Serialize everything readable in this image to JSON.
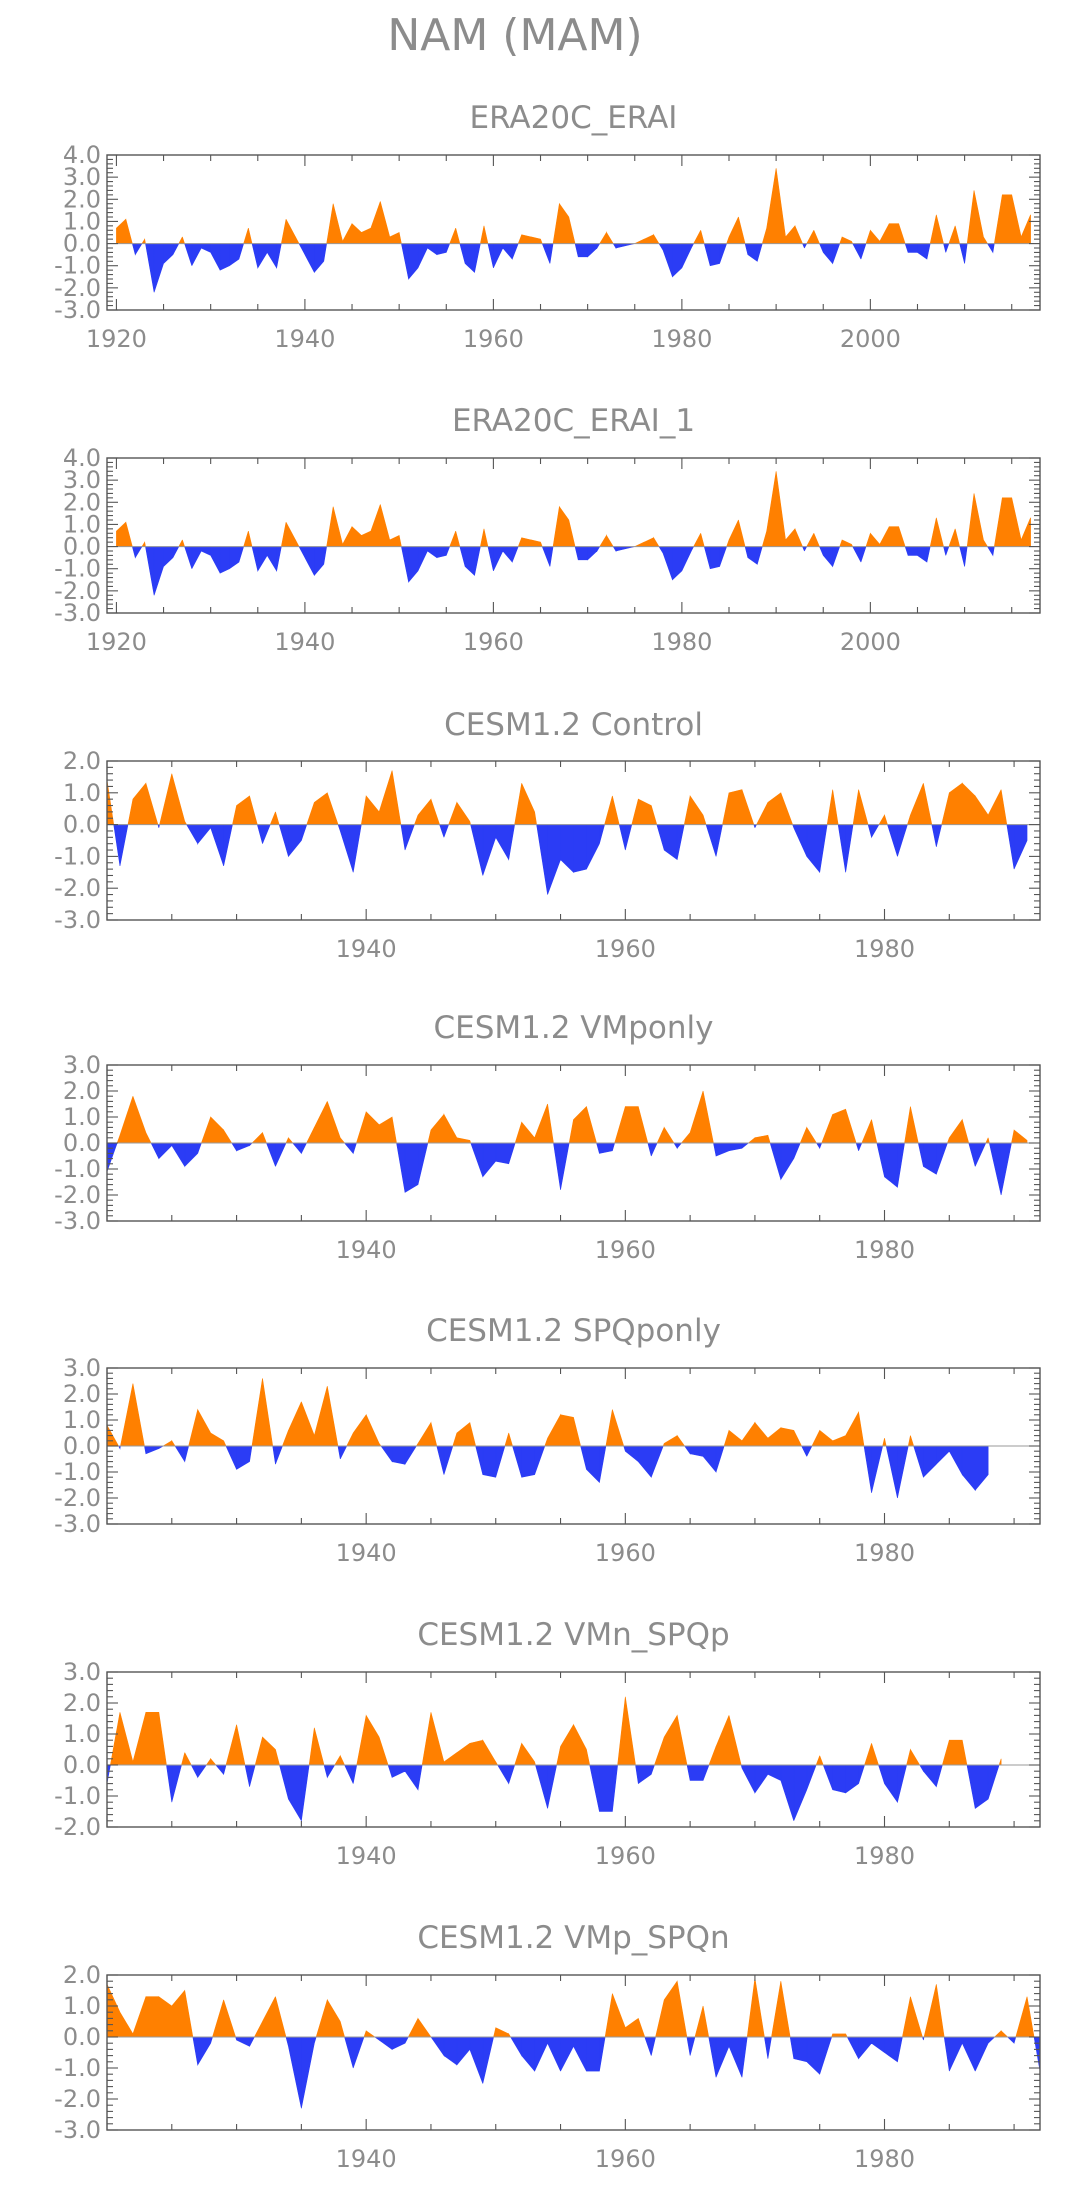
{
  "figure": {
    "title": "NAM (MAM)",
    "colors": {
      "positive": "#ff8000",
      "negative": "#2b3cf5",
      "text": "#8c8c8c",
      "axis": "#555555"
    }
  },
  "chart_data": [
    {
      "type": "area",
      "title": "ERA20C_ERAI",
      "xlim": [
        1919,
        2018
      ],
      "ylim": [
        -3.0,
        4.0
      ],
      "yticks": [
        "4.0",
        "3.0",
        "2.0",
        "1.0",
        "0.0",
        "-1.0",
        "-2.0",
        "-3.0"
      ],
      "xticks": [
        "1920",
        "1940",
        "1960",
        "1980",
        "2000"
      ],
      "x_start": 1920,
      "values": [
        0.7,
        1.1,
        -0.5,
        0.2,
        -2.2,
        -0.9,
        -0.5,
        0.3,
        -1.0,
        -0.2,
        -0.4,
        -1.2,
        -1.0,
        -0.7,
        0.7,
        -1.1,
        -0.4,
        -1.1,
        1.1,
        0.3,
        -0.5,
        -1.3,
        -0.8,
        1.8,
        0.1,
        0.9,
        0.5,
        0.7,
        1.9,
        0.3,
        0.5,
        -1.6,
        -1.1,
        -0.2,
        -0.5,
        -0.4,
        0.7,
        -0.9,
        -1.3,
        0.8,
        -1.1,
        -0.2,
        -0.7,
        0.4,
        0.3,
        0.2,
        -0.9,
        1.8,
        1.2,
        -0.6,
        -0.6,
        -0.2,
        0.5,
        -0.2,
        -0.1,
        0.0,
        0.2,
        0.4,
        -0.3,
        -1.5,
        -1.1,
        -0.2,
        0.6,
        -1.0,
        -0.9,
        0.3,
        1.2,
        -0.5,
        -0.8,
        0.7,
        3.4,
        0.3,
        0.8,
        -0.2,
        0.6,
        -0.4,
        -0.9,
        0.3,
        0.1,
        -0.7,
        0.6,
        0.1,
        0.9,
        0.9,
        -0.4,
        -0.4,
        -0.7,
        1.3,
        -0.4,
        0.8,
        -0.9,
        2.4,
        0.3,
        -0.4,
        2.2,
        2.2,
        0.3,
        1.3
      ]
    },
    {
      "type": "area",
      "title": "ERA20C_ERAI_1",
      "xlim": [
        1919,
        2018
      ],
      "ylim": [
        -3.0,
        4.0
      ],
      "yticks": [
        "4.0",
        "3.0",
        "2.0",
        "1.0",
        "0.0",
        "-1.0",
        "-2.0",
        "-3.0"
      ],
      "xticks": [
        "1920",
        "1940",
        "1960",
        "1980",
        "2000"
      ],
      "x_start": 1920,
      "values": [
        0.7,
        1.1,
        -0.5,
        0.2,
        -2.2,
        -0.9,
        -0.5,
        0.3,
        -1.0,
        -0.2,
        -0.4,
        -1.2,
        -1.0,
        -0.7,
        0.7,
        -1.1,
        -0.4,
        -1.1,
        1.1,
        0.3,
        -0.5,
        -1.3,
        -0.8,
        1.8,
        0.1,
        0.9,
        0.5,
        0.7,
        1.9,
        0.3,
        0.5,
        -1.6,
        -1.1,
        -0.2,
        -0.5,
        -0.4,
        0.7,
        -0.9,
        -1.3,
        0.8,
        -1.1,
        -0.2,
        -0.7,
        0.4,
        0.3,
        0.2,
        -0.9,
        1.8,
        1.2,
        -0.6,
        -0.6,
        -0.2,
        0.5,
        -0.2,
        -0.1,
        0.0,
        0.2,
        0.4,
        -0.3,
        -1.5,
        -1.1,
        -0.2,
        0.6,
        -1.0,
        -0.9,
        0.3,
        1.2,
        -0.5,
        -0.8,
        0.7,
        3.4,
        0.3,
        0.8,
        -0.2,
        0.6,
        -0.4,
        -0.9,
        0.3,
        0.1,
        -0.7,
        0.6,
        0.1,
        0.9,
        0.9,
        -0.4,
        -0.4,
        -0.7,
        1.3,
        -0.4,
        0.8,
        -0.9,
        2.4,
        0.3,
        -0.4,
        2.2,
        2.2,
        0.3,
        1.3
      ]
    },
    {
      "type": "area",
      "title": "CESM1.2 Control",
      "xlim": [
        1920,
        1992
      ],
      "ylim": [
        -3.0,
        2.0
      ],
      "yticks": [
        "2.0",
        "1.0",
        "0.0",
        "-1.0",
        "-2.0",
        "-3.0"
      ],
      "xticks": [
        "1940",
        "1960",
        "1980"
      ],
      "x_start": 1920,
      "values": [
        1.4,
        -1.3,
        0.8,
        1.3,
        -0.1,
        1.6,
        0.1,
        -0.6,
        -0.1,
        -1.3,
        0.6,
        0.9,
        -0.6,
        0.4,
        -1.0,
        -0.5,
        0.7,
        1.0,
        -0.2,
        -1.5,
        0.9,
        0.4,
        1.7,
        -0.8,
        0.3,
        0.8,
        -0.4,
        0.7,
        0.1,
        -1.6,
        -0.4,
        -1.1,
        1.3,
        0.4,
        -2.2,
        -1.1,
        -1.5,
        -1.4,
        -0.6,
        0.9,
        -0.8,
        0.8,
        0.6,
        -0.8,
        -1.1,
        0.9,
        0.3,
        -1.0,
        1.0,
        1.1,
        -0.1,
        0.7,
        1.0,
        -0.1,
        -1.0,
        -1.5,
        1.1,
        -1.5,
        1.1,
        -0.4,
        0.3,
        -1.0,
        0.3,
        1.3,
        -0.7,
        1.0,
        1.3,
        0.9,
        0.3,
        1.1,
        -1.4,
        -0.5
      ]
    },
    {
      "type": "area",
      "title": "CESM1.2 VMponly",
      "xlim": [
        1920,
        1992
      ],
      "ylim": [
        -3.0,
        3.0
      ],
      "yticks": [
        "3.0",
        "2.0",
        "1.0",
        "0.0",
        "-1.0",
        "-2.0",
        "-3.0"
      ],
      "xticks": [
        "1940",
        "1960",
        "1980"
      ],
      "x_start": 1920,
      "values": [
        -1.1,
        0.3,
        1.8,
        0.4,
        -0.6,
        -0.1,
        -0.9,
        -0.4,
        1.0,
        0.5,
        -0.3,
        -0.1,
        0.4,
        -0.9,
        0.2,
        -0.4,
        0.6,
        1.6,
        0.2,
        -0.4,
        1.2,
        0.7,
        1.0,
        -1.9,
        -1.6,
        0.5,
        1.1,
        0.2,
        0.1,
        -1.3,
        -0.7,
        -0.8,
        0.8,
        0.2,
        1.5,
        -1.8,
        0.9,
        1.4,
        -0.4,
        -0.3,
        1.4,
        1.4,
        -0.5,
        0.6,
        -0.2,
        0.4,
        2.0,
        -0.5,
        -0.3,
        -0.2,
        0.2,
        0.3,
        -1.4,
        -0.6,
        0.6,
        -0.2,
        1.1,
        1.3,
        -0.3,
        0.9,
        -1.3,
        -1.7,
        1.4,
        -0.9,
        -1.2,
        0.2,
        0.9,
        -0.9,
        0.2,
        -2.0,
        0.5,
        0.1
      ]
    },
    {
      "type": "area",
      "title": "CESM1.2 SPQponly",
      "xlim": [
        1920,
        1992
      ],
      "ylim": [
        -3.0,
        3.0
      ],
      "yticks": [
        "3.0",
        "2.0",
        "1.0",
        "0.0",
        "-1.0",
        "-2.0",
        "-3.0"
      ],
      "xticks": [
        "1940",
        "1960",
        "1980"
      ],
      "x_start": 1920,
      "values": [
        0.8,
        -0.1,
        2.4,
        -0.3,
        -0.1,
        0.2,
        -0.6,
        1.4,
        0.5,
        0.2,
        -0.9,
        -0.6,
        2.6,
        -0.7,
        0.6,
        1.7,
        0.4,
        2.3,
        -0.5,
        0.5,
        1.2,
        0.1,
        -0.6,
        -0.7,
        0.1,
        0.9,
        -1.1,
        0.5,
        0.9,
        -1.1,
        -1.2,
        0.5,
        -1.2,
        -1.1,
        0.3,
        1.2,
        1.1,
        -0.9,
        -1.4,
        1.4,
        -0.2,
        -0.6,
        -1.2,
        0.1,
        0.4,
        -0.3,
        -0.4,
        -1.0,
        0.6,
        0.2,
        0.9,
        0.3,
        0.7,
        0.6,
        -0.4,
        0.6,
        0.2,
        0.4,
        1.3,
        -1.8,
        0.3,
        -2.0,
        0.4,
        -1.2,
        -0.7,
        -0.2,
        -1.1,
        -1.7,
        -1.1
      ]
    },
    {
      "type": "area",
      "title": "CESM1.2 VMn_SPQp",
      "xlim": [
        1920,
        1992
      ],
      "ylim": [
        -2.0,
        3.0
      ],
      "yticks": [
        "3.0",
        "2.0",
        "1.0",
        "0.0",
        "-1.0",
        "-2.0"
      ],
      "xticks": [
        "1940",
        "1960",
        "1980"
      ],
      "x_start": 1920,
      "values": [
        -0.6,
        1.7,
        0.1,
        1.7,
        1.7,
        -1.2,
        0.4,
        -0.4,
        0.2,
        -0.3,
        1.3,
        -0.7,
        0.9,
        0.5,
        -1.1,
        -1.8,
        1.2,
        -0.4,
        0.3,
        -0.6,
        1.6,
        0.9,
        -0.4,
        -0.2,
        -0.8,
        1.7,
        0.1,
        0.4,
        0.7,
        0.8,
        0.1,
        -0.6,
        0.7,
        0.1,
        -1.4,
        0.6,
        1.3,
        0.5,
        -1.5,
        -1.5,
        2.2,
        -0.6,
        -0.3,
        0.9,
        1.6,
        -0.5,
        -0.5,
        0.6,
        1.6,
        -0.1,
        -0.9,
        -0.3,
        -0.5,
        -1.8,
        -0.8,
        0.3,
        -0.8,
        -0.9,
        -0.6,
        0.7,
        -0.6,
        -1.2,
        0.5,
        -0.2,
        -0.7,
        0.8,
        0.8,
        -1.4,
        -1.1,
        0.2
      ]
    },
    {
      "type": "area",
      "title": "CESM1.2 VMp_SPQn",
      "xlim": [
        1920,
        1992
      ],
      "ylim": [
        -3.0,
        2.0
      ],
      "yticks": [
        "2.0",
        "1.0",
        "0.0",
        "-1.0",
        "-2.0",
        "-3.0"
      ],
      "xticks": [
        "1940",
        "1960",
        "1980"
      ],
      "x_start": 1920,
      "values": [
        1.7,
        0.8,
        0.1,
        1.3,
        1.3,
        1.0,
        1.5,
        -0.9,
        -0.2,
        1.2,
        -0.1,
        -0.3,
        0.5,
        1.3,
        -0.3,
        -2.3,
        -0.2,
        1.2,
        0.5,
        -1.0,
        0.2,
        -0.1,
        -0.4,
        -0.2,
        0.6,
        0.0,
        -0.6,
        -0.9,
        -0.4,
        -1.5,
        0.3,
        0.1,
        -0.6,
        -1.1,
        -0.2,
        -1.1,
        -0.3,
        -1.1,
        -1.1,
        1.4,
        0.3,
        0.6,
        -0.6,
        1.2,
        1.8,
        -0.6,
        1.0,
        -1.3,
        -0.3,
        -1.3,
        1.9,
        -0.7,
        1.8,
        -0.7,
        -0.8,
        -1.2,
        0.1,
        0.1,
        -0.7,
        -0.2,
        -0.5,
        -0.8,
        1.3,
        -0.1,
        1.7,
        -1.1,
        -0.2,
        -1.1,
        -0.2,
        0.2,
        -0.2,
        1.3,
        -1.1
      ]
    }
  ]
}
